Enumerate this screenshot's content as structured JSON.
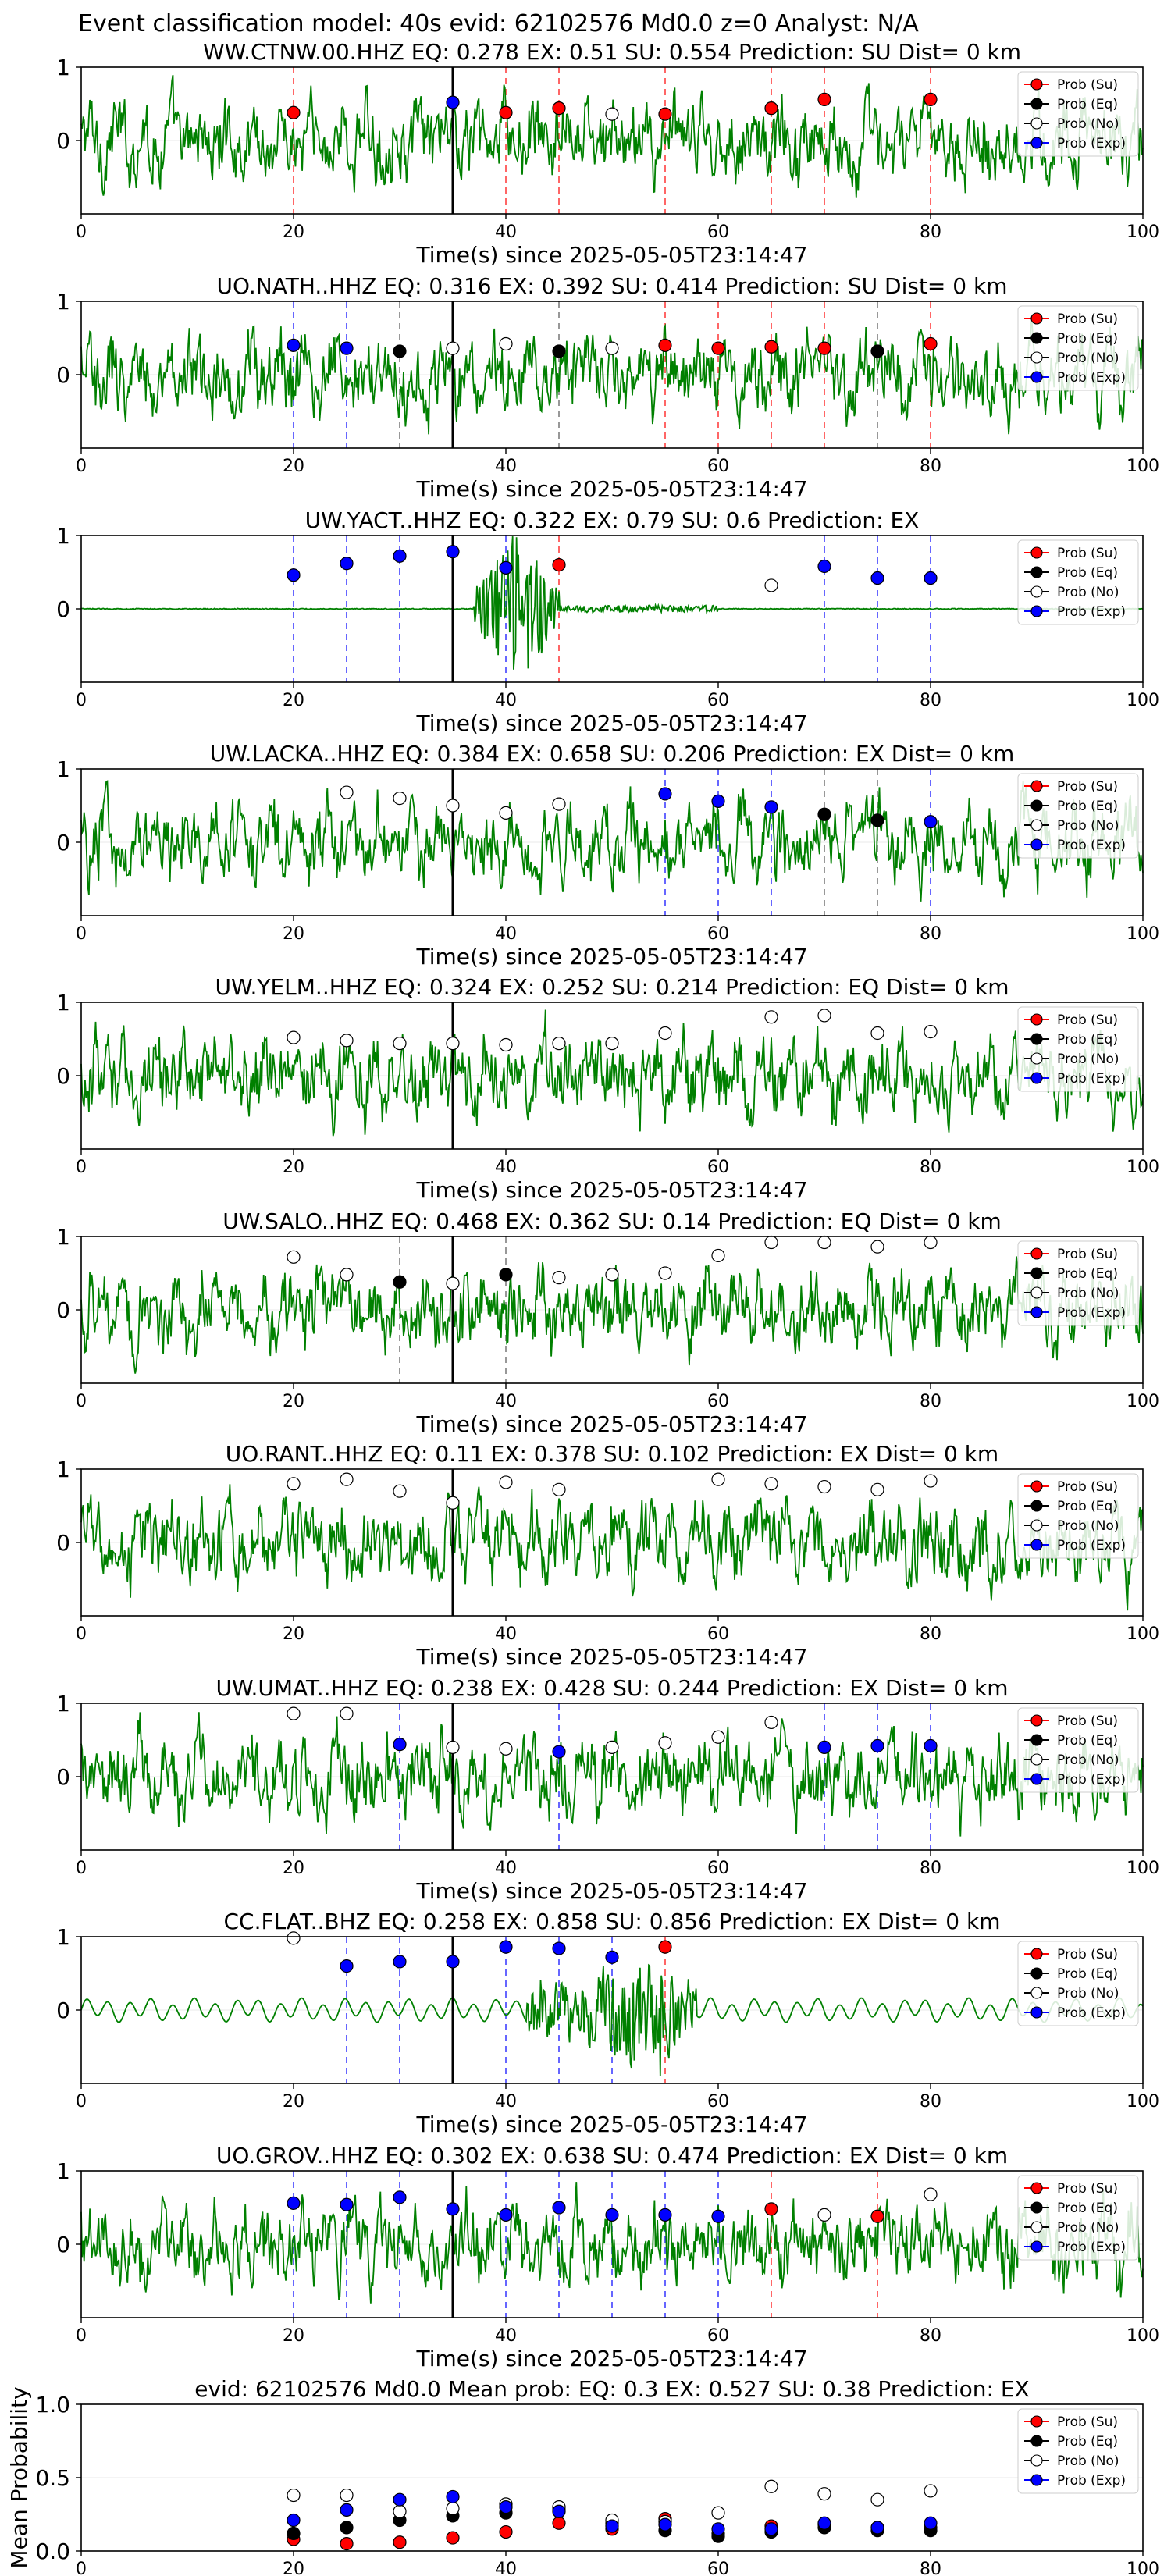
{
  "figure_title": "Event classification model: 40s evid: 62102576 Md0.0 z=0 Analyst: N/A",
  "legend": [
    "Prob (Su)",
    "Prob (Eq)",
    "Prob (No)",
    "Prob (Exp)"
  ],
  "colors": {
    "su": "#ff0000",
    "eq": "#000000",
    "no": "#ffffff",
    "exp": "#0000ff",
    "waveform": "#008000",
    "marker": "#000000"
  },
  "x_label": "Time(s) since 2025-05-05T23:14:47",
  "chart_data": [
    {
      "type": "line",
      "station": "WW.CTNW.00.HHZ",
      "title": "WW.CTNW.00.HHZ   EQ: 0.278   EX: 0.51   SU: 0.554   Prediction: SU    Dist= 0 km",
      "xlim": [
        0,
        100
      ],
      "ylim": [
        -1,
        1
      ],
      "yticks": [
        0,
        1
      ],
      "xticks": [
        0,
        20,
        40,
        60,
        80,
        100
      ],
      "marker_time": 35,
      "style": "noisy",
      "points": [
        {
          "t": 20,
          "c": "su",
          "y": 0.38
        },
        {
          "t": 35,
          "c": "exp",
          "y": 0.52
        },
        {
          "t": 40,
          "c": "su",
          "y": 0.38
        },
        {
          "t": 45,
          "c": "su",
          "y": 0.44
        },
        {
          "t": 50,
          "c": "no",
          "y": 0.36
        },
        {
          "t": 55,
          "c": "su",
          "y": 0.36
        },
        {
          "t": 65,
          "c": "su",
          "y": 0.44
        },
        {
          "t": 70,
          "c": "su",
          "y": 0.56
        },
        {
          "t": 80,
          "c": "su",
          "y": 0.56
        }
      ]
    },
    {
      "type": "line",
      "station": "UO.NATH..HHZ",
      "title": "UO.NATH..HHZ   EQ: 0.316   EX: 0.392   SU: 0.414   Prediction: SU    Dist= 0 km",
      "xlim": [
        0,
        100
      ],
      "ylim": [
        -1,
        1
      ],
      "yticks": [
        0,
        1
      ],
      "xticks": [
        0,
        20,
        40,
        60,
        80,
        100
      ],
      "marker_time": 35,
      "style": "noisy",
      "points": [
        {
          "t": 20,
          "c": "exp",
          "y": 0.4
        },
        {
          "t": 25,
          "c": "exp",
          "y": 0.36
        },
        {
          "t": 30,
          "c": "eq",
          "y": 0.32
        },
        {
          "t": 35,
          "c": "no",
          "y": 0.36
        },
        {
          "t": 40,
          "c": "no",
          "y": 0.42
        },
        {
          "t": 45,
          "c": "eq",
          "y": 0.32
        },
        {
          "t": 50,
          "c": "no",
          "y": 0.36
        },
        {
          "t": 55,
          "c": "su",
          "y": 0.4
        },
        {
          "t": 60,
          "c": "su",
          "y": 0.36
        },
        {
          "t": 65,
          "c": "su",
          "y": 0.38
        },
        {
          "t": 70,
          "c": "su",
          "y": 0.36
        },
        {
          "t": 75,
          "c": "eq",
          "y": 0.32
        },
        {
          "t": 80,
          "c": "su",
          "y": 0.42
        }
      ]
    },
    {
      "type": "line",
      "station": "UW.YACT..HHZ",
      "title": "UW.YACT..HHZ   EQ: 0.322  EX: 0.79  SU: 0.6   Prediction: EX",
      "xlim": [
        0,
        100
      ],
      "ylim": [
        -1,
        1
      ],
      "yticks": [
        0,
        1
      ],
      "xticks": [
        0,
        20,
        40,
        60,
        80,
        100
      ],
      "marker_time": 35,
      "style": "burst",
      "burst": [
        37,
        45
      ],
      "points": [
        {
          "t": 20,
          "c": "exp",
          "y": 0.46
        },
        {
          "t": 25,
          "c": "exp",
          "y": 0.62
        },
        {
          "t": 30,
          "c": "exp",
          "y": 0.72
        },
        {
          "t": 35,
          "c": "exp",
          "y": 0.78
        },
        {
          "t": 40,
          "c": "exp",
          "y": 0.56
        },
        {
          "t": 45,
          "c": "su",
          "y": 0.6
        },
        {
          "t": 65,
          "c": "no",
          "y": 0.32
        },
        {
          "t": 70,
          "c": "exp",
          "y": 0.58
        },
        {
          "t": 75,
          "c": "exp",
          "y": 0.42
        },
        {
          "t": 80,
          "c": "exp",
          "y": 0.42
        }
      ]
    },
    {
      "type": "line",
      "station": "UW.LACKA..HHZ",
      "title": "UW.LACKA..HHZ   EQ: 0.384  EX: 0.658  SU: 0.206   Prediction: EX    Dist= 0 km",
      "xlim": [
        0,
        100
      ],
      "ylim": [
        -1,
        1
      ],
      "yticks": [
        0,
        1
      ],
      "xticks": [
        0,
        20,
        40,
        60,
        80,
        100
      ],
      "marker_time": 35,
      "style": "noisy",
      "points": [
        {
          "t": 25,
          "c": "no",
          "y": 0.68
        },
        {
          "t": 30,
          "c": "no",
          "y": 0.6
        },
        {
          "t": 35,
          "c": "no",
          "y": 0.5
        },
        {
          "t": 40,
          "c": "no",
          "y": 0.4
        },
        {
          "t": 45,
          "c": "no",
          "y": 0.52
        },
        {
          "t": 55,
          "c": "exp",
          "y": 0.66
        },
        {
          "t": 60,
          "c": "exp",
          "y": 0.56
        },
        {
          "t": 65,
          "c": "exp",
          "y": 0.48
        },
        {
          "t": 70,
          "c": "eq",
          "y": 0.38
        },
        {
          "t": 75,
          "c": "eq",
          "y": 0.3
        },
        {
          "t": 80,
          "c": "exp",
          "y": 0.28
        }
      ]
    },
    {
      "type": "line",
      "station": "UW.YELM..HHZ",
      "title": "UW.YELM..HHZ   EQ: 0.324  EX: 0.252  SU: 0.214   Prediction: EQ    Dist= 0 km",
      "xlim": [
        0,
        100
      ],
      "ylim": [
        -1,
        1
      ],
      "yticks": [
        0,
        1
      ],
      "xticks": [
        0,
        20,
        40,
        60,
        80,
        100
      ],
      "marker_time": 35,
      "style": "noisy",
      "points": [
        {
          "t": 20,
          "c": "no",
          "y": 0.52
        },
        {
          "t": 25,
          "c": "no",
          "y": 0.48
        },
        {
          "t": 30,
          "c": "no",
          "y": 0.44
        },
        {
          "t": 35,
          "c": "no",
          "y": 0.44
        },
        {
          "t": 40,
          "c": "no",
          "y": 0.42
        },
        {
          "t": 45,
          "c": "no",
          "y": 0.44
        },
        {
          "t": 50,
          "c": "no",
          "y": 0.44
        },
        {
          "t": 55,
          "c": "no",
          "y": 0.58
        },
        {
          "t": 65,
          "c": "no",
          "y": 0.8
        },
        {
          "t": 70,
          "c": "no",
          "y": 0.82
        },
        {
          "t": 75,
          "c": "no",
          "y": 0.58
        },
        {
          "t": 80,
          "c": "no",
          "y": 0.6
        }
      ]
    },
    {
      "type": "line",
      "station": "UW.SALO..HHZ",
      "title": "UW.SALO..HHZ   EQ: 0.468  EX: 0.362  SU: 0.14   Prediction: EQ    Dist= 0 km",
      "xlim": [
        0,
        100
      ],
      "ylim": [
        -1,
        1
      ],
      "yticks": [
        0,
        1
      ],
      "xticks": [
        0,
        20,
        40,
        60,
        80,
        100
      ],
      "marker_time": 35,
      "style": "noisy",
      "points": [
        {
          "t": 20,
          "c": "no",
          "y": 0.72
        },
        {
          "t": 25,
          "c": "no",
          "y": 0.48
        },
        {
          "t": 30,
          "c": "eq",
          "y": 0.38
        },
        {
          "t": 35,
          "c": "no",
          "y": 0.36
        },
        {
          "t": 40,
          "c": "eq",
          "y": 0.48
        },
        {
          "t": 45,
          "c": "no",
          "y": 0.44
        },
        {
          "t": 50,
          "c": "no",
          "y": 0.48
        },
        {
          "t": 55,
          "c": "no",
          "y": 0.5
        },
        {
          "t": 60,
          "c": "no",
          "y": 0.74
        },
        {
          "t": 65,
          "c": "no",
          "y": 0.92
        },
        {
          "t": 70,
          "c": "no",
          "y": 0.92
        },
        {
          "t": 75,
          "c": "no",
          "y": 0.86
        },
        {
          "t": 80,
          "c": "no",
          "y": 0.92
        }
      ]
    },
    {
      "type": "line",
      "station": "UO.RANT..HHZ",
      "title": "UO.RANT..HHZ   EQ: 0.11  EX: 0.378  SU: 0.102   Prediction: EX    Dist= 0 km",
      "xlim": [
        0,
        100
      ],
      "ylim": [
        -1,
        1
      ],
      "yticks": [
        0,
        1
      ],
      "xticks": [
        0,
        20,
        40,
        60,
        80,
        100
      ],
      "marker_time": 35,
      "style": "noisy",
      "points": [
        {
          "t": 20,
          "c": "no",
          "y": 0.8
        },
        {
          "t": 25,
          "c": "no",
          "y": 0.86
        },
        {
          "t": 30,
          "c": "no",
          "y": 0.7
        },
        {
          "t": 35,
          "c": "no",
          "y": 0.54
        },
        {
          "t": 40,
          "c": "no",
          "y": 0.82
        },
        {
          "t": 45,
          "c": "no",
          "y": 0.72
        },
        {
          "t": 60,
          "c": "no",
          "y": 0.86
        },
        {
          "t": 65,
          "c": "no",
          "y": 0.8
        },
        {
          "t": 70,
          "c": "no",
          "y": 0.76
        },
        {
          "t": 75,
          "c": "no",
          "y": 0.72
        },
        {
          "t": 80,
          "c": "no",
          "y": 0.84
        }
      ]
    },
    {
      "type": "line",
      "station": "UW.UMAT..HHZ",
      "title": "UW.UMAT..HHZ   EQ: 0.238  EX: 0.428  SU: 0.244   Prediction: EX    Dist= 0 km",
      "xlim": [
        0,
        100
      ],
      "ylim": [
        -1,
        1
      ],
      "yticks": [
        0,
        1
      ],
      "xticks": [
        0,
        20,
        40,
        60,
        80,
        100
      ],
      "marker_time": 35,
      "style": "noisy",
      "points": [
        {
          "t": 20,
          "c": "no",
          "y": 0.86
        },
        {
          "t": 25,
          "c": "no",
          "y": 0.86
        },
        {
          "t": 30,
          "c": "exp",
          "y": 0.44
        },
        {
          "t": 35,
          "c": "no",
          "y": 0.4
        },
        {
          "t": 40,
          "c": "no",
          "y": 0.38
        },
        {
          "t": 45,
          "c": "exp",
          "y": 0.34
        },
        {
          "t": 50,
          "c": "no",
          "y": 0.4
        },
        {
          "t": 55,
          "c": "no",
          "y": 0.46
        },
        {
          "t": 60,
          "c": "no",
          "y": 0.54
        },
        {
          "t": 65,
          "c": "no",
          "y": 0.74
        },
        {
          "t": 70,
          "c": "exp",
          "y": 0.4
        },
        {
          "t": 75,
          "c": "exp",
          "y": 0.42
        },
        {
          "t": 80,
          "c": "exp",
          "y": 0.42
        }
      ]
    },
    {
      "type": "line",
      "station": "CC.FLAT..BHZ",
      "title": "CC.FLAT..BHZ   EQ: 0.258  EX: 0.858  SU: 0.856   Prediction: EX    Dist= 0 km",
      "xlim": [
        0,
        100
      ],
      "ylim": [
        -1,
        1
      ],
      "yticks": [
        0,
        1
      ],
      "xticks": [
        0,
        20,
        40,
        60,
        80,
        100
      ],
      "marker_time": 35,
      "style": "smooth",
      "burst": [
        42,
        58
      ],
      "points": [
        {
          "t": 20,
          "c": "no",
          "y": 0.98
        },
        {
          "t": 25,
          "c": "exp",
          "y": 0.6
        },
        {
          "t": 30,
          "c": "exp",
          "y": 0.66
        },
        {
          "t": 35,
          "c": "exp",
          "y": 0.66
        },
        {
          "t": 40,
          "c": "exp",
          "y": 0.86
        },
        {
          "t": 45,
          "c": "exp",
          "y": 0.84
        },
        {
          "t": 50,
          "c": "exp",
          "y": 0.72
        },
        {
          "t": 55,
          "c": "su",
          "y": 0.86
        }
      ]
    },
    {
      "type": "line",
      "station": "UO.GROV..HHZ",
      "title": "UO.GROV..HHZ   EQ: 0.302  EX: 0.638  SU: 0.474   Prediction: EX    Dist= 0 km",
      "xlim": [
        0,
        100
      ],
      "ylim": [
        -1,
        1
      ],
      "yticks": [
        0,
        1
      ],
      "xticks": [
        0,
        20,
        40,
        60,
        80,
        100
      ],
      "marker_time": 35,
      "style": "noisy",
      "points": [
        {
          "t": 20,
          "c": "exp",
          "y": 0.56
        },
        {
          "t": 25,
          "c": "exp",
          "y": 0.54
        },
        {
          "t": 30,
          "c": "exp",
          "y": 0.64
        },
        {
          "t": 35,
          "c": "exp",
          "y": 0.48
        },
        {
          "t": 40,
          "c": "exp",
          "y": 0.4
        },
        {
          "t": 45,
          "c": "exp",
          "y": 0.5
        },
        {
          "t": 50,
          "c": "exp",
          "y": 0.4
        },
        {
          "t": 55,
          "c": "exp",
          "y": 0.4
        },
        {
          "t": 60,
          "c": "exp",
          "y": 0.38
        },
        {
          "t": 65,
          "c": "su",
          "y": 0.48
        },
        {
          "t": 70,
          "c": "no",
          "y": 0.4
        },
        {
          "t": 75,
          "c": "su",
          "y": 0.38
        },
        {
          "t": 80,
          "c": "no",
          "y": 0.68
        }
      ]
    },
    {
      "type": "scatter",
      "station": "mean",
      "title": "evid: 62102576  Md0.0   Mean prob:    EQ: 0.3  EX: 0.527  SU: 0.38   Prediction: EX",
      "ylabel": "Mean Probability",
      "xlim": [
        0,
        100
      ],
      "ylim": [
        0,
        1
      ],
      "yticks": [
        0,
        0.5,
        1
      ],
      "ytick_labels": [
        "0.0",
        "0.5",
        "1.0"
      ],
      "xticks": [
        0,
        20,
        40,
        60,
        80,
        100
      ],
      "series": [
        {
          "name": "Prob (Su)",
          "c": "su",
          "x": [
            20,
            25,
            30,
            35,
            40,
            45,
            50,
            55,
            60,
            65,
            70,
            75,
            80
          ],
          "values": [
            0.08,
            0.05,
            0.06,
            0.09,
            0.13,
            0.19,
            0.15,
            0.22,
            0.12,
            0.17,
            0.18,
            0.16,
            0.16
          ]
        },
        {
          "name": "Prob (Eq)",
          "c": "eq",
          "x": [
            20,
            25,
            30,
            35,
            40,
            45,
            50,
            55,
            60,
            65,
            70,
            75,
            80
          ],
          "values": [
            0.12,
            0.16,
            0.21,
            0.24,
            0.26,
            0.28,
            0.19,
            0.14,
            0.1,
            0.13,
            0.16,
            0.14,
            0.14
          ]
        },
        {
          "name": "Prob (No)",
          "c": "no",
          "x": [
            20,
            25,
            30,
            35,
            40,
            45,
            50,
            55,
            60,
            65,
            70,
            75,
            80
          ],
          "values": [
            0.38,
            0.38,
            0.27,
            0.29,
            0.32,
            0.3,
            0.21,
            0.2,
            0.26,
            0.44,
            0.39,
            0.35,
            0.41
          ]
        },
        {
          "name": "Prob (Exp)",
          "c": "exp",
          "x": [
            20,
            25,
            30,
            35,
            40,
            45,
            50,
            55,
            60,
            65,
            70,
            75,
            80
          ],
          "values": [
            0.21,
            0.28,
            0.35,
            0.37,
            0.3,
            0.27,
            0.17,
            0.18,
            0.15,
            0.15,
            0.19,
            0.16,
            0.19
          ]
        }
      ]
    }
  ]
}
